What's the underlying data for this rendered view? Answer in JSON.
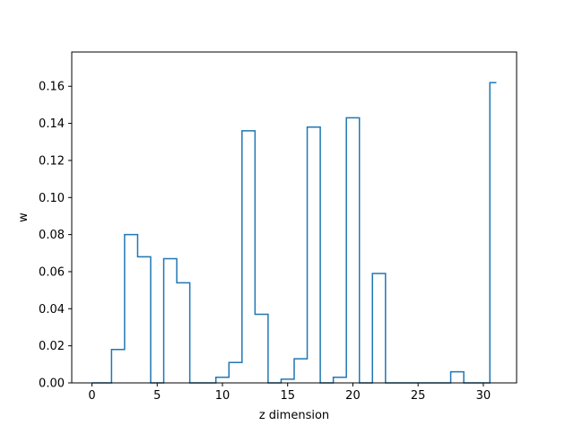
{
  "chart_data": {
    "type": "step",
    "title": "",
    "xlabel": "z dimension",
    "ylabel": "w",
    "xlim": [
      -1.55,
      32.55
    ],
    "ylim": [
      0,
      0.1785
    ],
    "xticks": [
      0,
      5,
      10,
      15,
      20,
      25,
      30
    ],
    "yticks": [
      0.0,
      0.02,
      0.04,
      0.06,
      0.08,
      0.1,
      0.12,
      0.14,
      0.16
    ],
    "ytick_labels": [
      "0.00",
      "0.02",
      "0.04",
      "0.06",
      "0.08",
      "0.10",
      "0.12",
      "0.14",
      "0.16"
    ],
    "xtick_labels": [
      "0",
      "5",
      "10",
      "15",
      "20",
      "25",
      "30"
    ],
    "line_color": "#1f77b4",
    "grid": false,
    "x": [
      0,
      1,
      2,
      3,
      4,
      5,
      6,
      7,
      8,
      9,
      10,
      11,
      12,
      13,
      14,
      15,
      16,
      17,
      18,
      19,
      20,
      21,
      22,
      23,
      24,
      25,
      26,
      27,
      28,
      29,
      30,
      31
    ],
    "y": [
      0,
      0,
      0.018,
      0.08,
      0.068,
      0,
      0.067,
      0.054,
      0,
      0,
      0.003,
      0.011,
      0.136,
      0.037,
      0,
      0.002,
      0.013,
      0.138,
      0,
      0.003,
      0.143,
      0,
      0.059,
      0,
      0,
      0,
      0,
      0,
      0.006,
      0,
      0,
      0.162
    ]
  }
}
